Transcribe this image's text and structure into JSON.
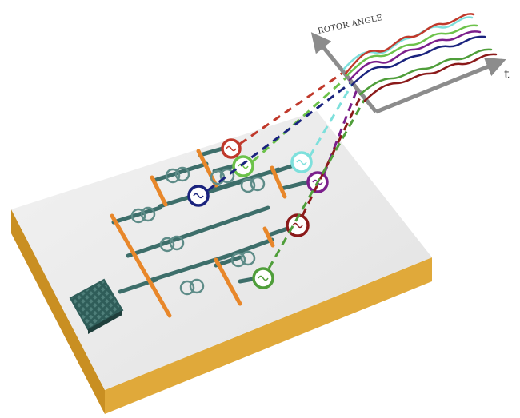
{
  "graph": {
    "y_axis_label": "ROTOR ANGLE",
    "x_axis_label": "t"
  },
  "colors": {
    "board_top": "#e8e8e8",
    "board_side": "#d9a02e",
    "bus": "#e8872a",
    "line": "#3d6e6a",
    "axis": "#8c8c8c",
    "generators": {
      "red": "#c0392b",
      "light_green": "#6cc24a",
      "navy": "#1a237e",
      "cyan": "#7ee0dc",
      "purple": "#7b1f8c",
      "dark_red": "#8b1a1a",
      "green": "#4f9e3a"
    }
  },
  "icons": {
    "grid": "grid-source-icon",
    "transformer": "transformer-icon",
    "generator": "generator-icon"
  }
}
